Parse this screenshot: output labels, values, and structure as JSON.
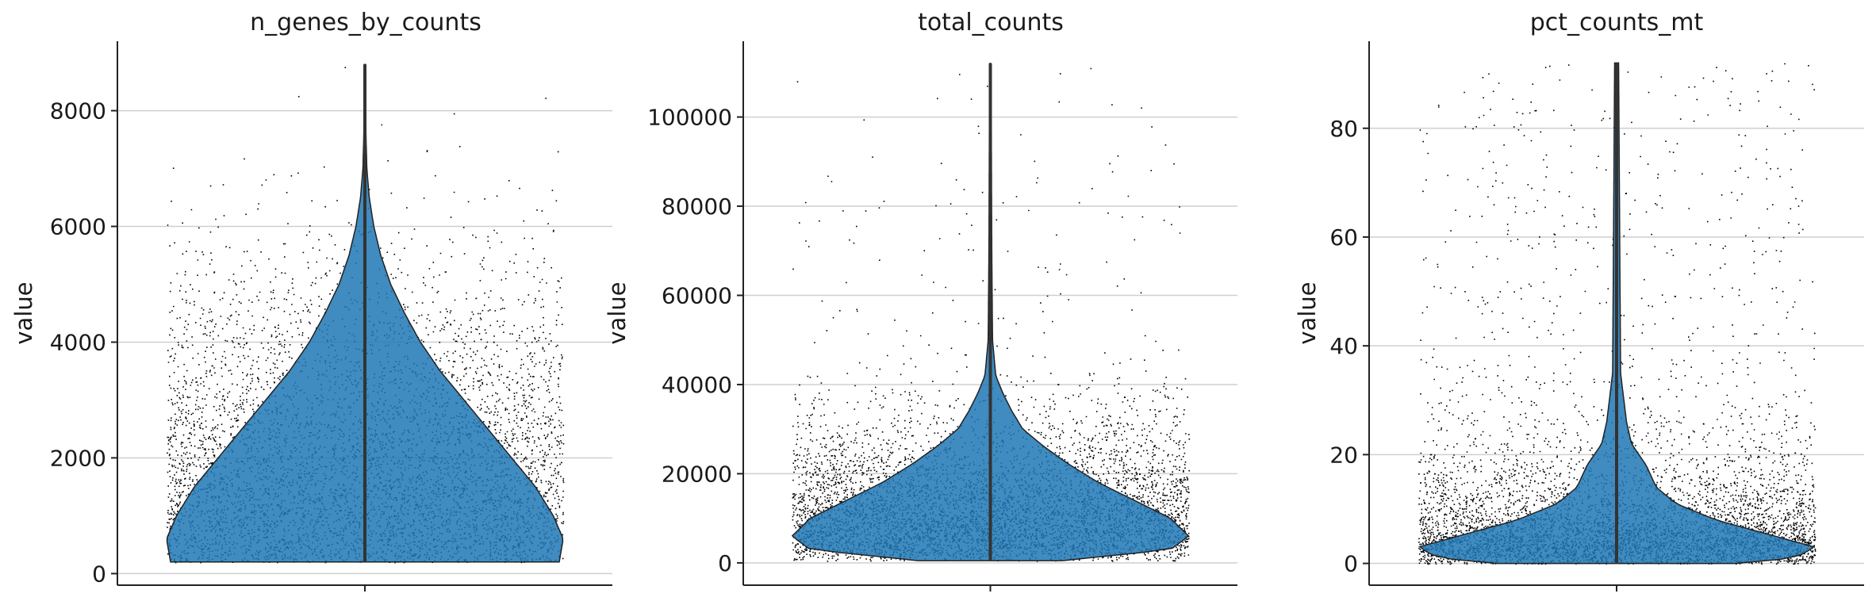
{
  "chart_data": [
    {
      "type": "violin",
      "title": "n_genes_by_counts",
      "ylabel": "value",
      "ylim": [
        -200,
        9200
      ],
      "yticks": [
        0,
        2000,
        4000,
        6000,
        8000
      ],
      "ytick_labels": [
        "0",
        "2000",
        "4000",
        "6000",
        "8000"
      ],
      "grid": true,
      "jitter_points": true,
      "violin_color": "#1f77b4",
      "min": 200,
      "max": 8800,
      "density_profile": [
        [
          200,
          0.98
        ],
        [
          600,
          1.0
        ],
        [
          1000,
          0.95
        ],
        [
          1500,
          0.86
        ],
        [
          2000,
          0.74
        ],
        [
          2500,
          0.62
        ],
        [
          3000,
          0.5
        ],
        [
          3500,
          0.38
        ],
        [
          4000,
          0.28
        ],
        [
          4500,
          0.2
        ],
        [
          5000,
          0.13
        ],
        [
          5500,
          0.08
        ],
        [
          6000,
          0.045
        ],
        [
          6500,
          0.022
        ],
        [
          7000,
          0.01
        ],
        [
          7500,
          0.006
        ],
        [
          8000,
          0.004
        ],
        [
          8800,
          0.002
        ]
      ]
    },
    {
      "type": "violin",
      "title": "total_counts",
      "ylabel": "value",
      "ylim": [
        -5000,
        117000
      ],
      "yticks": [
        0,
        20000,
        40000,
        60000,
        80000,
        100000
      ],
      "ytick_labels": [
        "0",
        "20000",
        "40000",
        "60000",
        "80000",
        "100000"
      ],
      "grid": true,
      "jitter_points": true,
      "violin_color": "#1f77b4",
      "min": 500,
      "max": 112000,
      "density_profile": [
        [
          500,
          0.2
        ],
        [
          3000,
          0.5
        ],
        [
          6000,
          0.55
        ],
        [
          10000,
          0.5
        ],
        [
          14000,
          0.4
        ],
        [
          18000,
          0.3
        ],
        [
          22000,
          0.22
        ],
        [
          26000,
          0.15
        ],
        [
          30000,
          0.09
        ],
        [
          34000,
          0.06
        ],
        [
          38000,
          0.035
        ],
        [
          42000,
          0.015
        ],
        [
          50000,
          0.006
        ],
        [
          70000,
          0.004
        ],
        [
          112000,
          0.002
        ]
      ]
    },
    {
      "type": "violin",
      "title": "pct_counts_mt",
      "ylabel": "value",
      "ylim": [
        -4,
        96
      ],
      "yticks": [
        0,
        20,
        40,
        60,
        80
      ],
      "ytick_labels": [
        "0",
        "20",
        "40",
        "60",
        "80"
      ],
      "grid": true,
      "jitter_points": true,
      "violin_color": "#1f77b4",
      "min": 0,
      "max": 92,
      "density_profile": [
        [
          0,
          0.12
        ],
        [
          1,
          0.18
        ],
        [
          3,
          0.2
        ],
        [
          5,
          0.16
        ],
        [
          8,
          0.1
        ],
        [
          11,
          0.06
        ],
        [
          14,
          0.04
        ],
        [
          18,
          0.03
        ],
        [
          22,
          0.015
        ],
        [
          26,
          0.01
        ],
        [
          35,
          0.004
        ],
        [
          92,
          0.002
        ]
      ]
    }
  ]
}
